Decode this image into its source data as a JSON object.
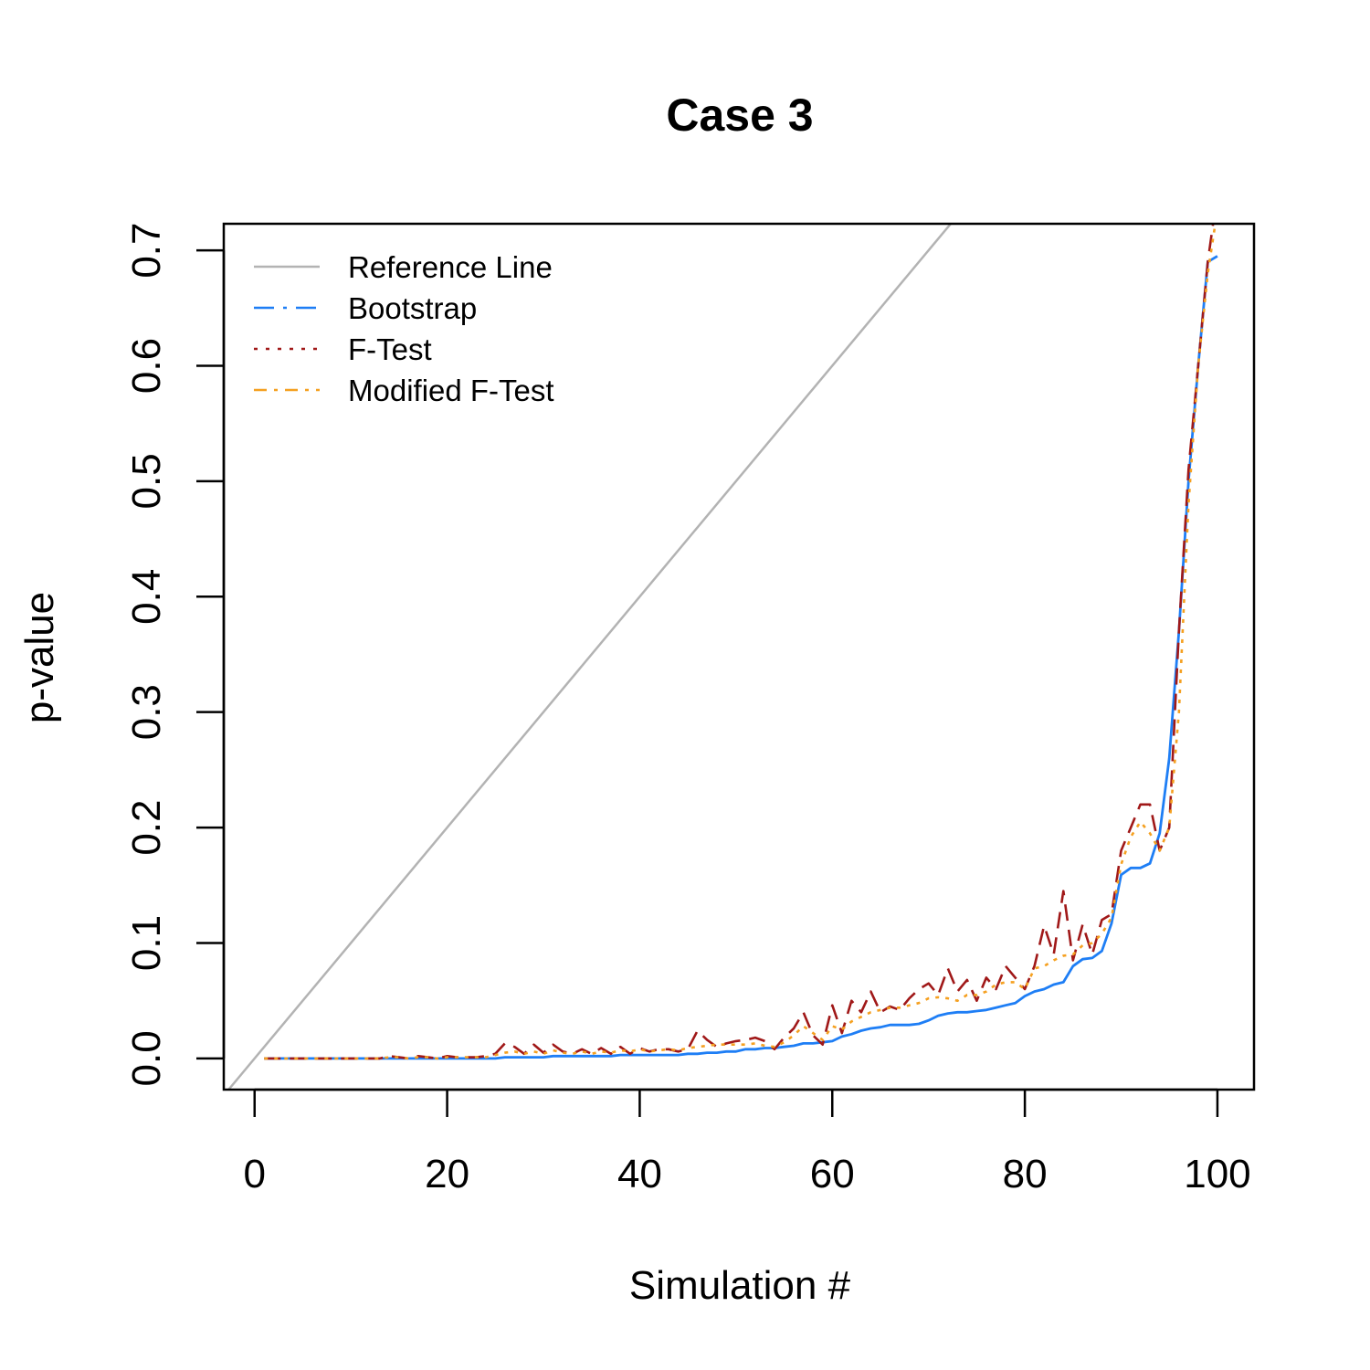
{
  "chart_data": {
    "type": "line",
    "title": "Case 3",
    "xlabel": "Simulation #",
    "ylabel": "p-value",
    "xlim": [
      -3.2,
      103.8
    ],
    "ylim": [
      -0.027,
      0.723
    ],
    "xticks": [
      0,
      20,
      40,
      60,
      80,
      100
    ],
    "yticks": [
      0.0,
      0.1,
      0.2,
      0.3,
      0.4,
      0.5,
      0.6,
      0.7
    ],
    "xtick_labels": [
      "0",
      "20",
      "40",
      "60",
      "80",
      "100"
    ],
    "ytick_labels": [
      "0.0",
      "0.1",
      "0.2",
      "0.3",
      "0.4",
      "0.5",
      "0.6",
      "0.7"
    ],
    "legend_position": "top-left",
    "grid": false,
    "reference_line": {
      "name": "Reference Line",
      "color": "#b3b3b3",
      "slope": 0.01,
      "intercept": 0
    },
    "series": [
      {
        "name": "Bootstrap",
        "color": "#1e7ef5",
        "values": [
          0,
          0,
          0,
          0,
          0,
          0,
          0,
          0,
          0,
          0,
          0,
          0,
          0,
          0,
          0,
          0,
          0,
          0,
          0,
          0,
          0,
          0,
          0,
          0,
          0,
          0.001,
          0.001,
          0.001,
          0.001,
          0.001,
          0.002,
          0.002,
          0.002,
          0.002,
          0.002,
          0.002,
          0.002,
          0.003,
          0.003,
          0.003,
          0.003,
          0.003,
          0.003,
          0.003,
          0.004,
          0.004,
          0.005,
          0.005,
          0.006,
          0.006,
          0.008,
          0.008,
          0.009,
          0.009,
          0.01,
          0.011,
          0.013,
          0.013,
          0.014,
          0.015,
          0.019,
          0.021,
          0.024,
          0.026,
          0.027,
          0.029,
          0.029,
          0.029,
          0.03,
          0.033,
          0.037,
          0.039,
          0.04,
          0.04,
          0.041,
          0.042,
          0.044,
          0.046,
          0.048,
          0.054,
          0.058,
          0.06,
          0.064,
          0.066,
          0.08,
          0.086,
          0.087,
          0.093,
          0.117,
          0.159,
          0.165,
          0.165,
          0.169,
          0.195,
          0.26,
          0.37,
          0.5,
          0.6,
          0.69,
          0.695
        ]
      },
      {
        "name": "F-Test",
        "color": "#a01818",
        "values": [
          0,
          0,
          0,
          0,
          0,
          0,
          0,
          0,
          0,
          0,
          0,
          0,
          0,
          0.002,
          0.001,
          0,
          0.002,
          0.001,
          0,
          0.002,
          0.001,
          0.001,
          0.001,
          0.002,
          0.004,
          0.013,
          0.01,
          0.004,
          0.012,
          0.005,
          0.012,
          0.006,
          0.004,
          0.008,
          0.004,
          0.009,
          0.004,
          0.01,
          0.004,
          0.009,
          0.006,
          0.008,
          0.008,
          0.006,
          0.008,
          0.024,
          0.016,
          0.01,
          0.013,
          0.015,
          0.016,
          0.018,
          0.015,
          0.008,
          0.018,
          0.026,
          0.04,
          0.02,
          0.012,
          0.046,
          0.022,
          0.05,
          0.04,
          0.058,
          0.04,
          0.045,
          0.042,
          0.052,
          0.06,
          0.065,
          0.055,
          0.078,
          0.058,
          0.068,
          0.05,
          0.07,
          0.06,
          0.08,
          0.07,
          0.06,
          0.08,
          0.115,
          0.09,
          0.145,
          0.085,
          0.116,
          0.09,
          0.12,
          0.125,
          0.18,
          0.2,
          0.22,
          0.22,
          0.18,
          0.2,
          0.37,
          0.51,
          0.6,
          0.69,
          0.75
        ]
      },
      {
        "name": "Modified F-Test",
        "color": "#f5a020",
        "values": [
          0,
          0,
          0,
          0,
          0,
          0,
          0,
          0,
          0,
          0,
          0,
          0,
          0,
          0.001,
          0.001,
          0,
          0.001,
          0.001,
          0,
          0.001,
          0.001,
          0.001,
          0.001,
          0.001,
          0.003,
          0.005,
          0.006,
          0.004,
          0.006,
          0.004,
          0.007,
          0.005,
          0.004,
          0.006,
          0.004,
          0.006,
          0.005,
          0.007,
          0.006,
          0.008,
          0.006,
          0.007,
          0.008,
          0.007,
          0.009,
          0.01,
          0.011,
          0.012,
          0.012,
          0.012,
          0.012,
          0.013,
          0.011,
          0.01,
          0.014,
          0.02,
          0.028,
          0.022,
          0.016,
          0.028,
          0.025,
          0.032,
          0.036,
          0.04,
          0.042,
          0.044,
          0.044,
          0.046,
          0.048,
          0.052,
          0.053,
          0.052,
          0.05,
          0.055,
          0.055,
          0.058,
          0.064,
          0.066,
          0.066,
          0.06,
          0.078,
          0.08,
          0.085,
          0.089,
          0.09,
          0.098,
          0.1,
          0.108,
          0.122,
          0.168,
          0.192,
          0.205,
          0.195,
          0.18,
          0.2,
          0.3,
          0.48,
          0.6,
          0.68,
          0.735
        ]
      }
    ]
  }
}
